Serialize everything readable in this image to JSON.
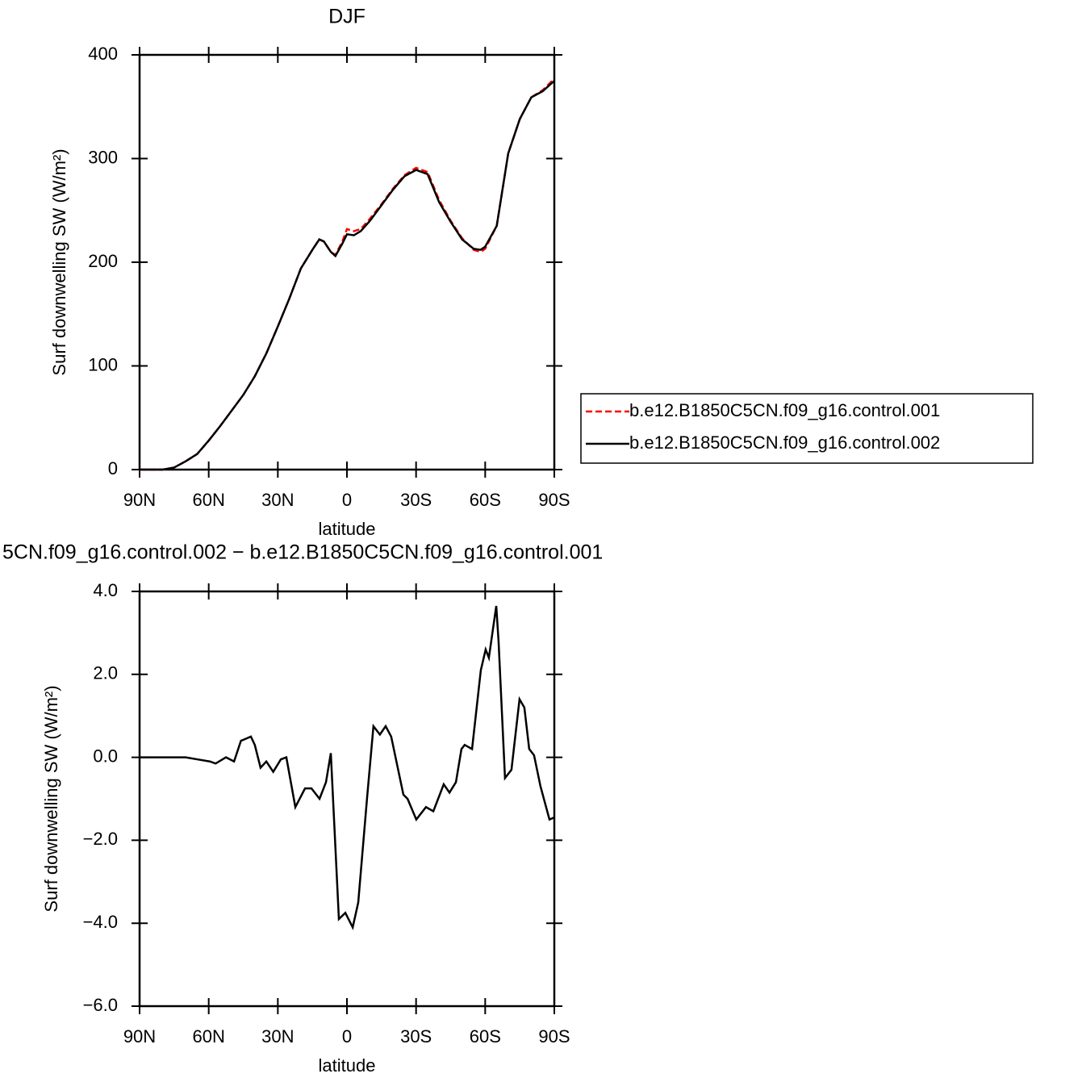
{
  "chart_data": [
    {
      "type": "line",
      "title": "DJF",
      "x_label": "latitude",
      "y_label": "Surf downwelling SW (W/m²)",
      "xlim": [
        90,
        -90
      ],
      "xticks": [
        {
          "value": 90,
          "label": "90N"
        },
        {
          "value": 60,
          "label": "60N"
        },
        {
          "value": 30,
          "label": "30N"
        },
        0,
        {
          "value": -30,
          "label": "30S"
        },
        {
          "value": -60,
          "label": "60S"
        },
        {
          "value": -90,
          "label": "90S"
        }
      ],
      "ylim": [
        0,
        400
      ],
      "yticks": [
        0,
        100,
        200,
        300,
        400
      ],
      "legend": "right",
      "x": [
        90,
        85,
        80,
        75,
        70,
        65,
        60,
        55,
        50,
        45,
        40,
        35,
        30,
        25,
        20,
        15,
        12,
        10,
        7,
        5,
        2,
        0,
        -3,
        -6,
        -10,
        -15,
        -20,
        -25,
        -30,
        -35,
        -40,
        -45,
        -50,
        -55,
        -58,
        -60,
        -65,
        -70,
        -75,
        -80,
        -85,
        -90
      ],
      "series": [
        {
          "name": "b.e12.B1850C5CN.f09_g16.control.001",
          "color": "#ff0000",
          "line_style": "dashed",
          "values": [
            0,
            0,
            0,
            2,
            8,
            15,
            28,
            42,
            57,
            72,
            90,
            112,
            138,
            165,
            194,
            212,
            222,
            220,
            210,
            207,
            220,
            232,
            230,
            232,
            242,
            256,
            271,
            284,
            291,
            287,
            260,
            240,
            223,
            212,
            210,
            213,
            235,
            305,
            338,
            359,
            366,
            377
          ]
        },
        {
          "name": "b.e12.B1850C5CN.f09_g16.control.002",
          "color": "#000000",
          "line_style": "solid",
          "values": [
            0,
            0,
            0,
            2,
            8,
            15,
            28,
            42,
            57,
            72,
            90,
            112,
            138,
            165,
            194,
            212,
            222,
            220,
            210,
            206,
            218,
            227,
            226,
            230,
            240,
            255,
            270,
            283,
            289,
            285,
            258,
            239,
            222,
            213,
            212,
            215,
            235,
            305,
            338,
            359,
            365,
            375
          ]
        }
      ]
    },
    {
      "type": "line",
      "title": "5CN.f09_g16.control.002 − b.e12.B1850C5CN.f09_g16.control.001",
      "x_label": "latitude",
      "y_label": "Surf downwelling SW (W/m²)",
      "xlim": [
        90,
        -90
      ],
      "xticks": [
        {
          "value": 90,
          "label": "90N"
        },
        {
          "value": 60,
          "label": "60N"
        },
        {
          "value": 30,
          "label": "30N"
        },
        0,
        {
          "value": -30,
          "label": "30S"
        },
        {
          "value": -60,
          "label": "60S"
        },
        {
          "value": -90,
          "label": "90S"
        }
      ],
      "ylim": [
        -6,
        4
      ],
      "yticks": [
        {
          "value": -6,
          "label": "−6.0"
        },
        {
          "value": -4,
          "label": "−4.0"
        },
        {
          "value": -2,
          "label": "−2.0"
        },
        {
          "value": 0,
          "label": "0.0"
        },
        {
          "value": 2,
          "label": "2.0"
        },
        {
          "value": 4,
          "label": "4.0"
        }
      ],
      "x": [
        90,
        80,
        70,
        64.8,
        59.5,
        57,
        52.5,
        49,
        46,
        43.8,
        41.7,
        40,
        37.5,
        35,
        32,
        28.7,
        26.3,
        22.4,
        18.2,
        15.4,
        11.9,
        9.1,
        7,
        3.5,
        0.7,
        -2.5,
        -4.9,
        -8.7,
        -11.5,
        -14.3,
        -16.8,
        -19.2,
        -24.5,
        -26.3,
        -30.1,
        -34.3,
        -37.5,
        -42,
        -44.5,
        -47.3,
        -49.7,
        -51.1,
        -54.3,
        -58.1,
        -60.2,
        -61.6,
        -64.8,
        -65.8,
        -68.6,
        -71.4,
        -74.9,
        -77,
        -79.1,
        -81.2,
        -84,
        -87.9,
        -90
      ],
      "series": [
        {
          "color": "#000000",
          "line_style": "solid",
          "values": [
            0,
            0,
            0,
            -0.05,
            -0.1,
            -0.15,
            0,
            -0.1,
            0.4,
            0.45,
            0.5,
            0.3,
            -0.25,
            -0.1,
            -0.35,
            -0.05,
            0,
            -1.2,
            -0.75,
            -0.75,
            -1.0,
            -0.6,
            0.1,
            -3.9,
            -3.75,
            -4.1,
            -3.5,
            -1.0,
            0.75,
            0.55,
            0.75,
            0.5,
            -0.9,
            -1.0,
            -1.5,
            -1.2,
            -1.3,
            -0.65,
            -0.85,
            -0.6,
            0.2,
            0.3,
            0.2,
            2.1,
            2.6,
            2.4,
            3.65,
            2.8,
            -0.5,
            -0.3,
            1.4,
            1.2,
            0.2,
            0.05,
            -0.7,
            -1.5,
            -1.45
          ]
        }
      ]
    }
  ]
}
